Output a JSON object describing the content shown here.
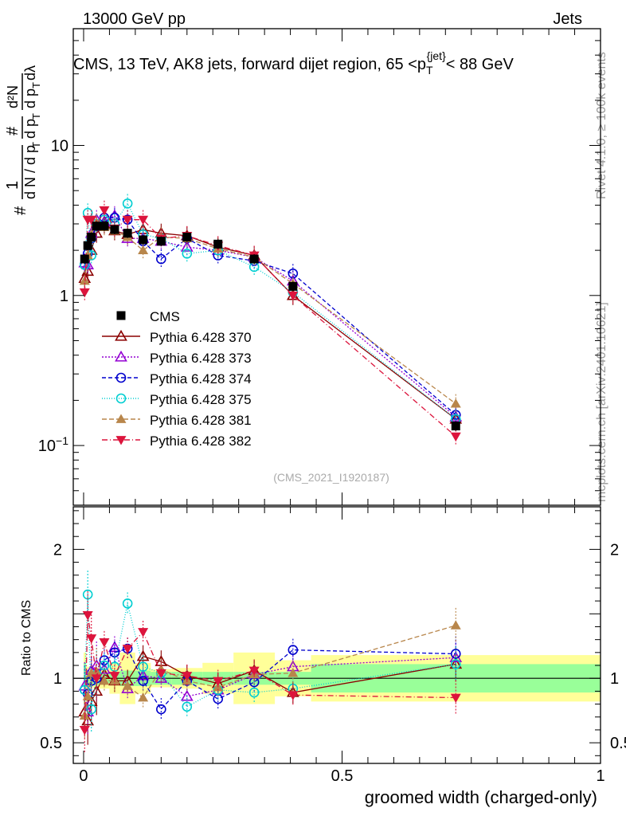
{
  "header": {
    "left": "13000 GeV pp",
    "right": "Jets"
  },
  "side": {
    "rivet": "Rivet 4.1.0, ≥ 100k events",
    "mcplots": "mcplots.cern.ch [arXiv:2401.10621]"
  },
  "chart_data": {
    "type": "scatter",
    "title": "CMS, 13 TeV, AK8 jets, forward dijet region, 65 <p_T^{jet}< 88 GeV",
    "title_parts": {
      "before": "CMS, 13 TeV, AK8 jets, forward dijet region, 65 <p",
      "sub": "T",
      "sup": "{jet}",
      "after": "< 88 GeV"
    },
    "ylabel": "1/dN/dp_T dN/dp_T dλ",
    "ylabel_parts": {
      "lead": "#",
      "one": "1",
      "dn": "d N / d p",
      "t": "T",
      "hash": "#",
      "d2n": "d²N",
      "dp": "d p",
      "dl": "dλ"
    },
    "xlabel": "groomed width (charged-only)",
    "ratio_ylabel": "Ratio to CMS",
    "watermark": "(CMS_2021_I1920187)",
    "main": {
      "yscale": "log",
      "ylim": [
        0.04,
        60
      ],
      "yticks": [
        0.1,
        1,
        10
      ],
      "ytick_labels": [
        {
          "base": "10",
          "exp": "−1"
        },
        {
          "base": "1",
          "exp": ""
        },
        {
          "base": "10",
          "exp": ""
        }
      ]
    },
    "ratio": {
      "ylim": [
        0.34,
        2.33
      ],
      "yticks": [
        0.5,
        1,
        2
      ],
      "ytick_labels": [
        "0.5",
        "1",
        "2"
      ]
    },
    "xlim": [
      -0.02,
      1.0
    ],
    "xticks": [
      0,
      0.5,
      1
    ],
    "xtick_labels": [
      "0",
      "0.5",
      "1"
    ],
    "x": [
      0.002,
      0.008,
      0.015,
      0.025,
      0.04,
      0.06,
      0.085,
      0.115,
      0.15,
      0.2,
      0.26,
      0.33,
      0.405,
      0.72
    ],
    "bands": {
      "edges": [
        0.0,
        0.005,
        0.011,
        0.019,
        0.031,
        0.05,
        0.07,
        0.1,
        0.13,
        0.17,
        0.23,
        0.29,
        0.37,
        0.44,
        1.0
      ],
      "green_half": [
        0.12,
        0.06,
        0.05,
        0.05,
        0.04,
        0.05,
        0.06,
        0.06,
        0.05,
        0.05,
        0.05,
        0.05,
        0.05,
        0.11
      ],
      "yellow_half": [
        0.2,
        0.09,
        0.07,
        0.08,
        0.08,
        0.12,
        0.2,
        0.12,
        0.07,
        0.08,
        0.12,
        0.2,
        0.14,
        0.18
      ]
    },
    "data": {
      "name": "CMS",
      "color": "#000000",
      "values": [
        1.75,
        2.15,
        2.45,
        2.9,
        2.9,
        2.75,
        2.6,
        2.35,
        2.3,
        2.45,
        2.2,
        1.75,
        1.15,
        0.135
      ]
    },
    "series": [
      {
        "name": "Pythia 6.428 370",
        "color": "#8b0000",
        "marker": "triangle-open",
        "dash": "",
        "values": [
          1.3,
          1.45,
          2.0,
          2.6,
          3.0,
          2.7,
          2.55,
          2.75,
          2.6,
          2.5,
          2.1,
          1.85,
          1.0,
          0.15
        ],
        "ratio": [
          0.74,
          0.67,
          0.82,
          0.9,
          1.03,
          0.98,
          0.98,
          1.17,
          1.13,
          1.02,
          0.96,
          1.06,
          0.89,
          1.11
        ]
      },
      {
        "name": "Pythia 6.428 373",
        "color": "#9400d3",
        "marker": "triangle-open",
        "dash": "2,2",
        "values": [
          1.65,
          1.6,
          2.6,
          3.2,
          3.1,
          3.4,
          2.4,
          2.4,
          2.3,
          2.1,
          2.0,
          1.8,
          1.25,
          0.155
        ],
        "ratio": [
          0.94,
          0.74,
          1.06,
          1.1,
          1.07,
          1.24,
          0.92,
          1.02,
          1.0,
          0.86,
          0.91,
          1.03,
          1.09,
          1.16
        ]
      },
      {
        "name": "Pythia 6.428 374",
        "color": "#0000cd",
        "marker": "circle-open",
        "dash": "5,3",
        "values": [
          1.6,
          1.9,
          2.4,
          2.9,
          3.3,
          3.3,
          3.2,
          2.3,
          1.75,
          2.4,
          1.85,
          1.7,
          1.4,
          0.16
        ],
        "ratio": [
          0.91,
          0.88,
          0.98,
          1.0,
          1.14,
          1.2,
          1.23,
          0.98,
          0.76,
          0.98,
          0.84,
          0.97,
          1.22,
          1.19
        ]
      },
      {
        "name": "Pythia 6.428 375",
        "color": "#00ced1",
        "marker": "circle-open",
        "dash": "1,2",
        "values": [
          1.6,
          3.55,
          1.85,
          3.0,
          3.2,
          3.0,
          4.1,
          2.55,
          2.4,
          1.9,
          2.0,
          1.55,
          1.05,
          0.15
        ],
        "ratio": [
          0.91,
          1.65,
          0.76,
          1.03,
          1.1,
          1.09,
          1.58,
          1.09,
          1.04,
          0.78,
          0.91,
          0.89,
          0.92,
          1.11
        ]
      },
      {
        "name": "Pythia 6.428 381",
        "color": "#b8864b",
        "marker": "triangle-filled",
        "dash": "6,3",
        "values": [
          1.25,
          1.85,
          2.55,
          3.05,
          2.85,
          2.7,
          2.45,
          2.0,
          2.45,
          2.4,
          2.05,
          1.8,
          1.2,
          0.19
        ],
        "ratio": [
          0.71,
          0.86,
          1.04,
          1.05,
          0.98,
          0.98,
          0.94,
          0.85,
          1.07,
          0.98,
          0.93,
          1.03,
          1.04,
          1.41
        ]
      },
      {
        "name": "Pythia 6.428 382",
        "color": "#dc143c",
        "marker": "triangle-down-filled",
        "dash": "7,3,1,3",
        "values": [
          1.05,
          3.2,
          3.2,
          2.9,
          3.7,
          2.8,
          3.2,
          3.2,
          2.4,
          2.5,
          2.15,
          1.85,
          1.0,
          0.115
        ],
        "ratio": [
          0.6,
          1.49,
          1.31,
          1.0,
          1.28,
          1.02,
          1.23,
          1.36,
          1.04,
          1.02,
          0.98,
          1.06,
          0.87,
          0.85
        ]
      }
    ]
  }
}
